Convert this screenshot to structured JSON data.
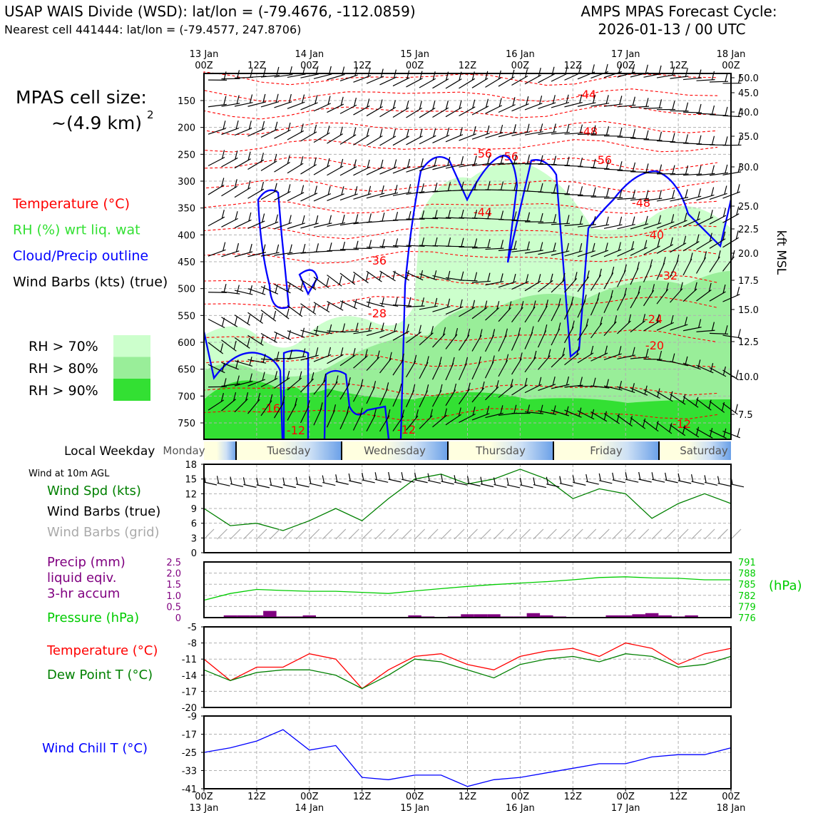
{
  "header": {
    "station_line": "USAP WAIS Divide (WSD): lat/lon = (-79.4676, -112.0859)",
    "cell_line": "Nearest cell 441444: lat/lon = (-79.4577, 247.8706)",
    "cycle_label": "AMPS MPAS Forecast Cycle:",
    "cycle_value": "2026-01-13 / 00 UTC"
  },
  "left_panel": {
    "cell_size_label": "MPAS cell size:",
    "cell_size_value": "~(4.9 km)",
    "cell_size_exp": "2",
    "legend": [
      {
        "label": "Temperature (°C)",
        "color": "#ff0000"
      },
      {
        "label": "RH (%) wrt liq. wat",
        "color": "#33e033"
      },
      {
        "label": "Cloud/Precip outline",
        "color": "#0000ff"
      },
      {
        "label": "Wind Barbs (kts) (true)",
        "color": "#000000"
      }
    ],
    "rh_legend": [
      {
        "label": "RH > 70%",
        "color": "#ccffcc"
      },
      {
        "label": "RH > 80%",
        "color": "#99ee99"
      },
      {
        "label": "RH > 90%",
        "color": "#33e033"
      }
    ]
  },
  "colors": {
    "temperature": "#ff0000",
    "dewpoint": "#008000",
    "wind_speed": "#008000",
    "pressure": "#00cc00",
    "precip": "#800080",
    "wind_chill": "#0000ff",
    "cloud_outline": "#0000ff",
    "rh70": "#ccffcc",
    "rh80": "#99ee99",
    "rh90": "#33e033",
    "barb_grid": "#aaaaaa"
  },
  "time_axis": {
    "top_dates": [
      "13 Jan",
      "",
      "14 Jan",
      "",
      "15 Jan",
      "",
      "16 Jan",
      "",
      "17 Jan",
      "",
      "18 Jan"
    ],
    "times": [
      "00Z",
      "12Z",
      "00Z",
      "12Z",
      "00Z",
      "12Z",
      "00Z",
      "12Z",
      "00Z",
      "12Z",
      "00Z"
    ],
    "bottom_dates": [
      "13 Jan",
      "",
      "14 Jan",
      "",
      "15 Jan",
      "",
      "16 Jan",
      "",
      "17 Jan",
      "",
      "18 Jan"
    ]
  },
  "weekday_strip": {
    "label": "Local Weekday",
    "days": [
      "Monday",
      "Tuesday",
      "Wednesday",
      "Thursday",
      "Friday",
      "Saturday"
    ]
  },
  "chart_data": [
    {
      "type": "heatmap",
      "name": "time-height cross section",
      "y_left_label": "",
      "y_left_ticks": [
        150,
        200,
        250,
        300,
        350,
        400,
        450,
        500,
        550,
        600,
        650,
        700,
        750
      ],
      "y_right_label": "kft MSL",
      "y_right_ticks": [
        "50.0",
        "45.0",
        "40.0",
        "35.0",
        "30.0",
        "25.0",
        "22.5",
        "20.0",
        "17.5",
        "15.0",
        "12.5",
        "10.0",
        "7.5"
      ],
      "temperature_contour_labels": [
        "-44",
        "-48",
        "-56",
        "-56",
        "-56",
        "-48",
        "-44",
        "-40",
        "-36",
        "-32",
        "-28",
        "-24",
        "-20",
        "-16",
        "-12",
        "-12",
        "-12"
      ],
      "grid": true
    },
    {
      "type": "line",
      "name": "wind",
      "title": "Wind at 10m AGL",
      "legend": [
        {
          "label": "Wind Spd (kts)",
          "color": "#008000"
        },
        {
          "label": "Wind Barbs (true)",
          "color": "#000000"
        },
        {
          "label": "Wind Barbs (grid)",
          "color": "#aaaaaa"
        }
      ],
      "x_hours": [
        0,
        6,
        12,
        18,
        24,
        30,
        36,
        42,
        48,
        54,
        60,
        66,
        72,
        78,
        84,
        90,
        96,
        102,
        108,
        114,
        120
      ],
      "wind_speed": [
        9,
        5.5,
        6,
        4.5,
        6.5,
        9,
        6.5,
        11,
        15,
        16,
        14,
        15,
        17,
        15,
        11,
        13,
        12,
        7,
        10,
        12,
        10
      ],
      "ylim": [
        0,
        18
      ],
      "yticks": [
        0,
        3,
        6,
        9,
        12,
        15,
        18
      ],
      "grid": true
    },
    {
      "type": "bar",
      "name": "precip and pressure",
      "legend": [
        {
          "label": "Precip (mm)",
          "color": "#800080"
        },
        {
          "label": "liquid eqiv.",
          "color": "#800080"
        },
        {
          "label": "3-hr accum",
          "color": "#800080"
        },
        {
          "label": "Pressure (hPa)",
          "color": "#00cc00"
        }
      ],
      "left_ylim": [
        0,
        2.5
      ],
      "left_yticks": [
        "0",
        "0.5",
        "1.0",
        "1.5",
        "2.0",
        "2.5"
      ],
      "right_ylim": [
        776,
        791
      ],
      "right_yticks": [
        "776",
        "779",
        "782",
        "785",
        "788",
        "791"
      ],
      "right_unit": "(hPa)",
      "precip_x_hours": [
        6,
        9,
        12,
        15,
        18,
        21,
        24,
        48,
        51,
        57,
        60,
        63,
        66,
        69,
        72,
        75,
        78,
        81,
        93,
        96,
        99,
        102,
        105,
        108,
        111
      ],
      "precip_mm": [
        0.1,
        0.1,
        0.1,
        0.3,
        0.05,
        0.05,
        0.1,
        0.1,
        0.05,
        0.05,
        0.15,
        0.15,
        0.15,
        0.05,
        0.05,
        0.2,
        0.1,
        0.05,
        0.1,
        0.1,
        0.15,
        0.2,
        0.1,
        0.05,
        0.1
      ],
      "pressure_x_hours": [
        0,
        6,
        12,
        18,
        24,
        30,
        36,
        42,
        48,
        54,
        60,
        66,
        72,
        78,
        84,
        90,
        96,
        102,
        108,
        114,
        120
      ],
      "pressure_hpa": [
        780.7,
        782.5,
        783.6,
        783.3,
        783.1,
        783.1,
        782.8,
        782.5,
        783.2,
        783.8,
        784.4,
        784.9,
        785.3,
        785.7,
        786.2,
        786.8,
        787.0,
        786.7,
        786.6,
        786.2,
        786.2
      ],
      "grid": true
    },
    {
      "type": "line",
      "name": "temperature and dew point",
      "series": [
        {
          "name": "Temperature (°C)",
          "color": "#ff0000",
          "values": [
            -11,
            -15,
            -12.5,
            -12.5,
            -10,
            -11,
            -16.5,
            -13,
            -10.5,
            -10,
            -12,
            -13,
            -10.5,
            -9.5,
            -9,
            -10.5,
            -8,
            -9,
            -12,
            -10,
            -9
          ]
        },
        {
          "name": "Dew Point T (°C)",
          "color": "#008000",
          "values": [
            -13,
            -15,
            -13.5,
            -13,
            -13,
            -14,
            -16.5,
            -14,
            -11,
            -11.5,
            -13,
            -14.5,
            -12,
            -11,
            -10.5,
            -11.5,
            -10,
            -10.5,
            -12.5,
            -12,
            -10.5
          ]
        }
      ],
      "x_hours": [
        0,
        6,
        12,
        18,
        24,
        30,
        36,
        42,
        48,
        54,
        60,
        66,
        72,
        78,
        84,
        90,
        96,
        102,
        108,
        114,
        120
      ],
      "ylim": [
        -20,
        -5
      ],
      "yticks": [
        "-5",
        "-8",
        "-11",
        "-14",
        "-17",
        "-20"
      ],
      "grid": true
    },
    {
      "type": "line",
      "name": "wind chill",
      "series": [
        {
          "name": "Wind Chill T (°C)",
          "color": "#0000ff",
          "values": [
            -25,
            -23,
            -20,
            -15,
            -24,
            -22,
            -36,
            -37,
            -35,
            -35,
            -40,
            -37,
            -36,
            -34,
            -32,
            -30,
            -30,
            -27,
            -26,
            -26,
            -23
          ]
        }
      ],
      "x_hours": [
        0,
        6,
        12,
        18,
        24,
        30,
        36,
        42,
        48,
        54,
        60,
        66,
        72,
        78,
        84,
        90,
        96,
        102,
        108,
        114,
        120
      ],
      "ylim": [
        -41,
        -9
      ],
      "yticks": [
        "-9",
        "-17",
        "-25",
        "-33",
        "-41"
      ],
      "grid": true
    }
  ]
}
